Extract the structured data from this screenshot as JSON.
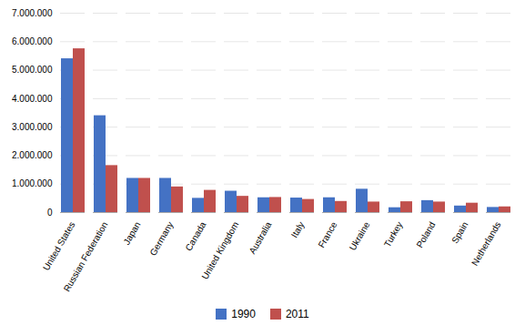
{
  "chart_data": {
    "type": "bar",
    "categories": [
      "United States",
      "Russian Federation",
      "Japan",
      "Germany",
      "Canada",
      "United Kingdom",
      "Australia",
      "Italy",
      "France",
      "Ukraine",
      "Turkey",
      "Poland",
      "Spain",
      "Netherlands"
    ],
    "series": [
      {
        "name": "1990",
        "color": "#4472c4",
        "values": [
          5400000,
          3400000,
          1200000,
          1200000,
          500000,
          750000,
          520000,
          510000,
          520000,
          820000,
          170000,
          420000,
          230000,
          180000
        ]
      },
      {
        "name": "2011",
        "color": "#c0504d",
        "values": [
          5750000,
          1650000,
          1200000,
          900000,
          780000,
          570000,
          530000,
          460000,
          390000,
          370000,
          380000,
          370000,
          330000,
          200000
        ]
      }
    ],
    "ylim": [
      0,
      7000000
    ],
    "yticks": [
      0,
      {
        "value": 1000000,
        "label": "1.000.000"
      },
      {
        "value": 2000000,
        "label": "2.000.000"
      },
      {
        "value": 3000000,
        "label": "3.000.000"
      },
      {
        "value": 4000000,
        "label": "4.000.000"
      },
      {
        "value": 5000000,
        "label": "5.000.000"
      },
      {
        "value": 6000000,
        "label": "6.000.000"
      },
      {
        "value": 7000000,
        "label": "7.000.000"
      }
    ],
    "grid": true,
    "legend": "bottom"
  }
}
